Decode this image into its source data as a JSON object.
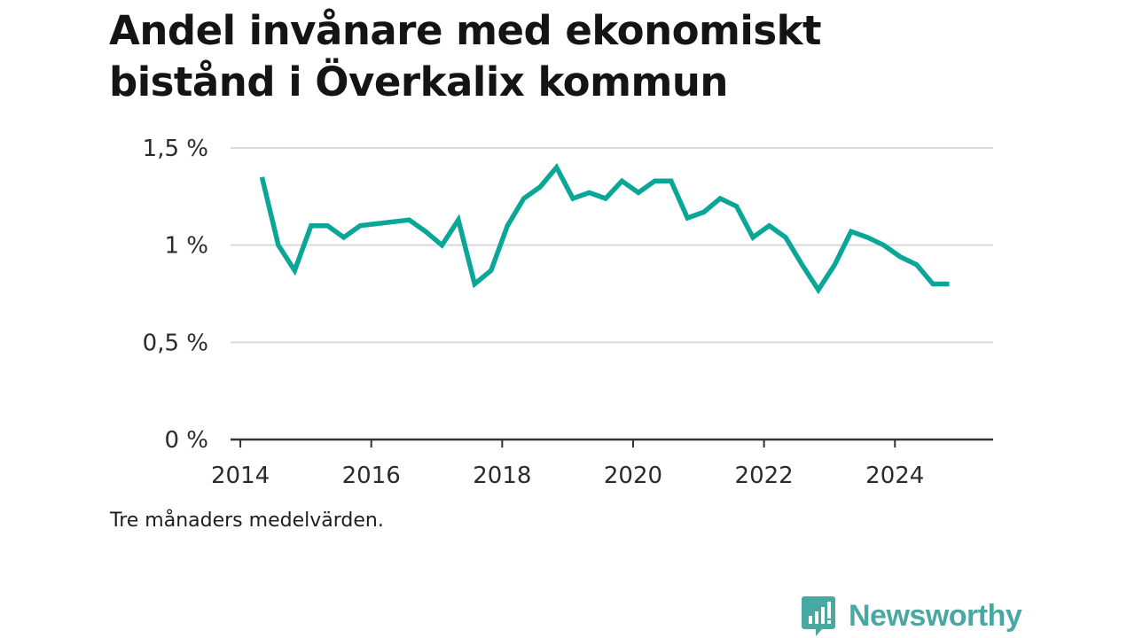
{
  "title_line1": "Andel invånare med ekonomiskt",
  "title_line2": "bistånd i Överkalix kommun",
  "note": "Tre månaders medelvärden.",
  "brand": {
    "name": "Newsworthy",
    "color": "#4aa8a3",
    "icon": "bar-chart-speech-bubble-icon"
  },
  "chart_data": {
    "type": "line",
    "title": "Andel invånare med ekonomiskt bistånd i Överkalix kommun",
    "xlabel": "",
    "ylabel": "",
    "ylim": [
      0,
      1.5
    ],
    "xlim": [
      2013.85,
      2025.5
    ],
    "grid": true,
    "line_color": "#0aa698",
    "x_ticks": [
      {
        "value": 2014,
        "label": "2014"
      },
      {
        "value": 2016,
        "label": "2016"
      },
      {
        "value": 2018,
        "label": "2018"
      },
      {
        "value": 2020,
        "label": "2020"
      },
      {
        "value": 2022,
        "label": "2022"
      },
      {
        "value": 2024,
        "label": "2024"
      }
    ],
    "y_ticks": [
      {
        "value": 0,
        "label": "0 %"
      },
      {
        "value": 0.5,
        "label": "0,5 %"
      },
      {
        "value": 1,
        "label": "1 %"
      },
      {
        "value": 1.5,
        "label": "1,5 %"
      }
    ],
    "series": [
      {
        "x": [
          2014.33,
          2014.58,
          2014.83,
          2015.08,
          2015.33,
          2015.58,
          2015.83,
          2016.08,
          2016.33,
          2016.58,
          2016.83,
          2017.08,
          2017.33,
          2017.58,
          2017.83,
          2018.08,
          2018.33,
          2018.58,
          2018.83,
          2019.08,
          2019.33,
          2019.58,
          2019.83,
          2020.08,
          2020.33,
          2020.58,
          2020.83,
          2021.08,
          2021.33,
          2021.58,
          2021.83,
          2022.08,
          2022.33,
          2022.58,
          2022.83,
          2023.08,
          2023.33,
          2023.58,
          2023.83,
          2024.08,
          2024.33,
          2024.58,
          2024.83
        ],
        "values": [
          1.35,
          1.0,
          0.87,
          1.1,
          1.1,
          1.04,
          1.1,
          1.11,
          1.12,
          1.13,
          1.07,
          1.0,
          1.13,
          0.8,
          0.87,
          1.1,
          1.24,
          1.3,
          1.4,
          1.24,
          1.27,
          1.24,
          1.33,
          1.27,
          1.33,
          1.33,
          1.14,
          1.17,
          1.24,
          1.2,
          1.04,
          1.1,
          1.04,
          0.9,
          0.77,
          0.9,
          1.07,
          1.04,
          1.0,
          0.94,
          0.9,
          0.8,
          0.8
        ]
      }
    ]
  }
}
